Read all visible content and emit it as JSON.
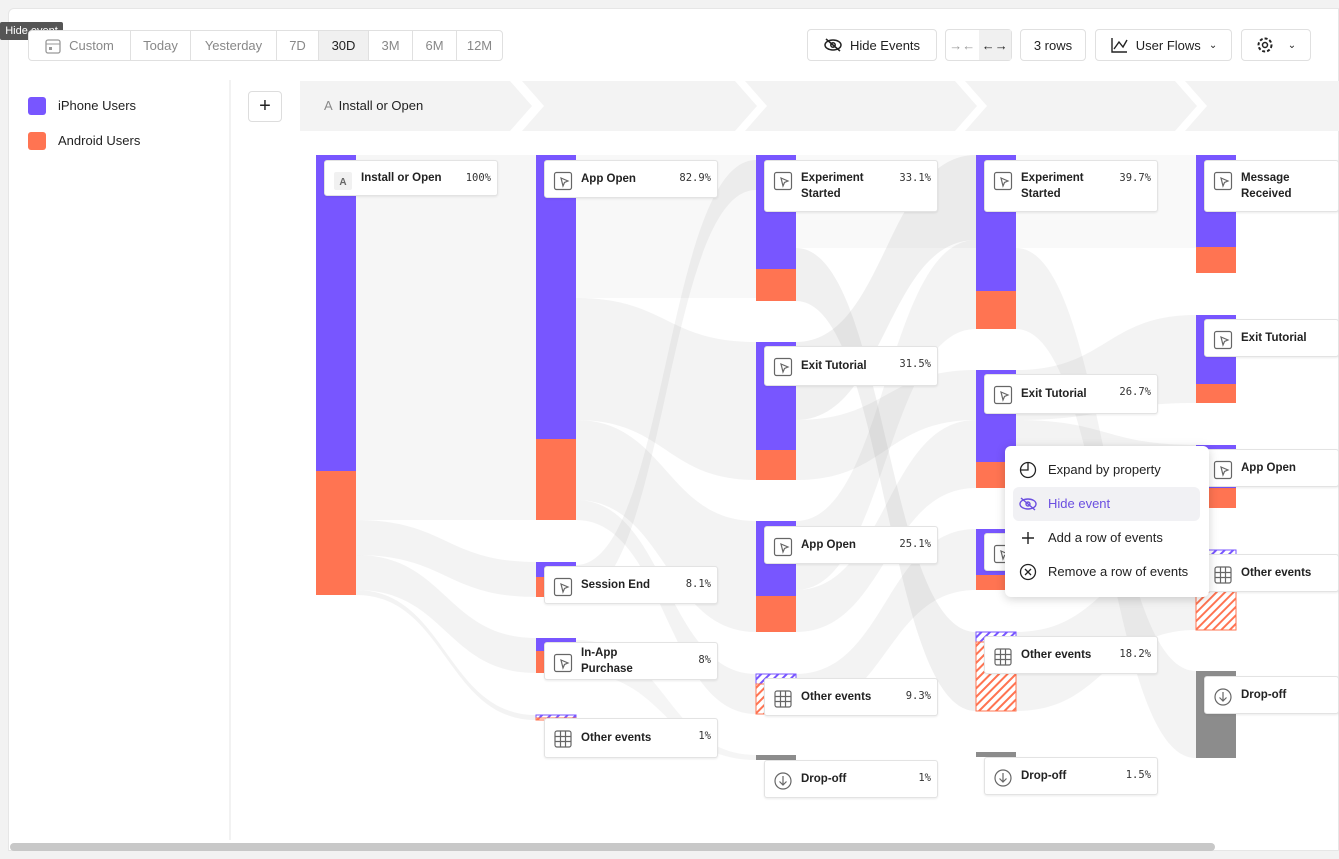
{
  "tooltip": "Hide event",
  "date_range": [
    "Custom",
    "Today",
    "Yesterday",
    "7D",
    "30D",
    "3M",
    "6M",
    "12M"
  ],
  "toolbar": {
    "hide_events": "Hide Events",
    "rows": "3 rows",
    "view": "User Flows"
  },
  "legend": [
    "iPhone Users",
    "Android Users"
  ],
  "step_header": {
    "letter": "A",
    "label": "Install or Open"
  },
  "columns": [
    {
      "nodes": [
        {
          "label": "Install or Open",
          "percent": "100%"
        }
      ]
    },
    {
      "nodes": [
        {
          "label": "App Open",
          "percent": "82.9%"
        },
        {
          "label": "Session End",
          "percent": "8.1%"
        },
        {
          "label": "In-App Purchase",
          "percent": "8%"
        },
        {
          "label": "Other events",
          "percent": "1%"
        }
      ]
    },
    {
      "nodes": [
        {
          "label": "Experiment Started",
          "percent": "33.1%"
        },
        {
          "label": "Exit Tutorial",
          "percent": "31.5%"
        },
        {
          "label": "App Open",
          "percent": "25.1%"
        },
        {
          "label": "Other events",
          "percent": "9.3%"
        },
        {
          "label": "Drop-off",
          "percent": "1%"
        }
      ]
    },
    {
      "nodes": [
        {
          "label": "Experiment Started",
          "percent": "39.7%"
        },
        {
          "label": "Exit Tutorial",
          "percent": "26.7%"
        },
        {
          "label": "Other events",
          "percent": "18.2%"
        },
        {
          "label": "Drop-off",
          "percent": "1.5%"
        }
      ]
    },
    {
      "nodes": [
        {
          "label": "Message Received"
        },
        {
          "label": "Exit Tutorial"
        },
        {
          "label": "App Open"
        },
        {
          "label": "Other events"
        },
        {
          "label": "Drop-off"
        }
      ]
    }
  ],
  "context_menu": [
    "Expand by property",
    "Hide event",
    "Add a row of events",
    "Remove a row of events"
  ]
}
